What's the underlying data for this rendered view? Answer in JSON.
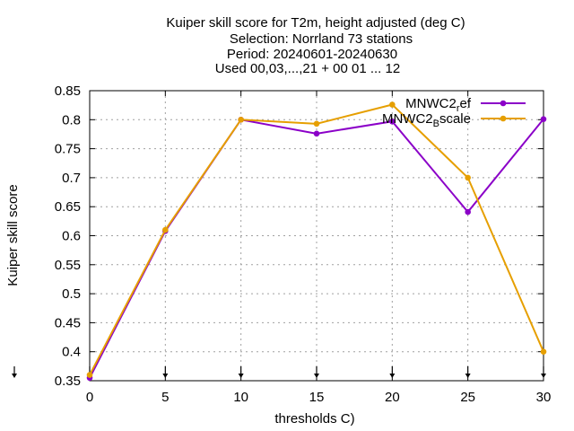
{
  "chart_data": {
    "type": "line",
    "title_lines": [
      "Kuiper skill score  for T2m, height adjusted (deg C)",
      "Selection: Norrland      73 stations",
      "Period: 20240601-20240630",
      "Used 00,03,...,21 + 00 01 ... 12"
    ],
    "xlabel": "thresholds C)",
    "ylabel": "Kuiper skill score",
    "xlim": [
      0,
      30
    ],
    "ylim": [
      0.35,
      0.85
    ],
    "xticks": [
      "0",
      "5",
      "10",
      "15",
      "20",
      "25",
      "30"
    ],
    "yticks": [
      "0.35",
      "0.4",
      "0.45",
      "0.5",
      "0.55",
      "0.6",
      "0.65",
      "0.7",
      "0.75",
      "0.8",
      "0.85"
    ],
    "grid": true,
    "legend_position": "top-right",
    "x": [
      0,
      5,
      10,
      15,
      20,
      25,
      30
    ],
    "series": [
      {
        "name_main": "MNWC2",
        "name_sub": "r",
        "name_tail": "ef",
        "color": "#8b00c8",
        "values": [
          0.355,
          0.608,
          0.8,
          0.776,
          0.797,
          0.641,
          0.801
        ]
      },
      {
        "name_main": "MNWC2",
        "name_sub": "B",
        "name_tail": "scale",
        "color": "#e69f00",
        "values": [
          0.36,
          0.61,
          0.8,
          0.793,
          0.826,
          0.7,
          0.4
        ]
      }
    ]
  }
}
